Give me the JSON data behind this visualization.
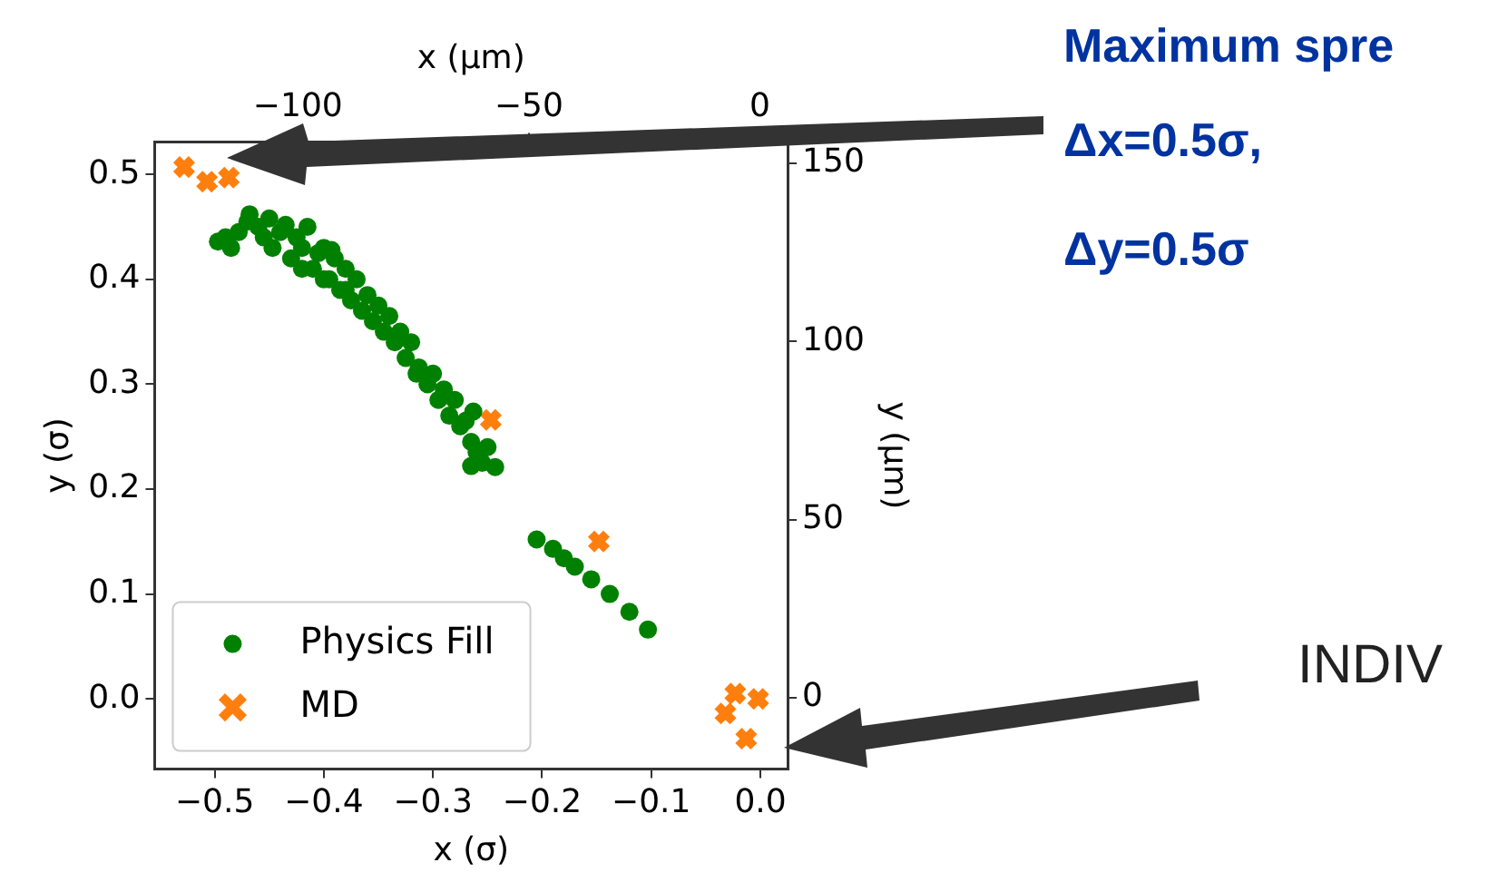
{
  "chart_data": {
    "type": "scatter",
    "xlabel": "x (σ)",
    "ylabel": "y (σ)",
    "x2label": "x (μm)",
    "y2label": "y (μm)",
    "xlim": [
      -0.555,
      0.025
    ],
    "xticks": [
      {
        "value": -0.5,
        "label": "−0.5"
      },
      {
        "value": -0.4,
        "label": "−0.4"
      },
      {
        "value": -0.3,
        "label": "−0.3"
      },
      {
        "value": -0.2,
        "label": "−0.2"
      },
      {
        "value": -0.1,
        "label": "−0.1"
      },
      {
        "value": 0,
        "label": "0.0"
      }
    ],
    "ylim": [
      -0.067,
      0.531
    ],
    "yticks": [
      {
        "value": 0,
        "label": "0.0"
      },
      {
        "value": 0.1,
        "label": "0.1"
      },
      {
        "value": 0.2,
        "label": "0.2"
      },
      {
        "value": 0.3,
        "label": "0.3"
      },
      {
        "value": 0.4,
        "label": "0.4"
      },
      {
        "value": 0.5,
        "label": "0.5"
      }
    ],
    "x2lim": [
      -131,
      6
    ],
    "x2ticks": [
      {
        "value": -100,
        "label": "−100"
      },
      {
        "value": -50,
        "label": "−50"
      },
      0
    ],
    "y2lim": [
      -20,
      156
    ],
    "y2ticks": [
      0,
      50,
      100,
      150
    ],
    "grid": false,
    "legend": "bottom left",
    "series": [
      {
        "name": "Physics Fill",
        "color": "#008000",
        "marker": "circle",
        "x": [
          -0.497,
          -0.49,
          -0.485,
          -0.478,
          -0.47,
          -0.468,
          -0.46,
          -0.455,
          -0.45,
          -0.447,
          -0.44,
          -0.435,
          -0.43,
          -0.425,
          -0.42,
          -0.415,
          -0.41,
          -0.405,
          -0.4,
          -0.395,
          -0.39,
          -0.393,
          -0.385,
          -0.38,
          -0.375,
          -0.37,
          -0.365,
          -0.36,
          -0.355,
          -0.35,
          -0.345,
          -0.34,
          -0.335,
          -0.33,
          -0.325,
          -0.32,
          -0.315,
          -0.313,
          -0.305,
          -0.3,
          -0.295,
          -0.29,
          -0.285,
          -0.28,
          -0.275,
          -0.27,
          -0.265,
          -0.263,
          -0.26,
          -0.265,
          -0.255,
          -0.243,
          -0.25,
          -0.42,
          -0.4,
          -0.38,
          -0.205,
          -0.19,
          -0.18,
          -0.17,
          -0.155,
          -0.138,
          -0.12,
          -0.103
        ],
        "values": [
          0.436,
          0.44,
          0.43,
          0.445,
          0.455,
          0.462,
          0.45,
          0.44,
          0.458,
          0.43,
          0.445,
          0.452,
          0.42,
          0.44,
          0.43,
          0.45,
          0.41,
          0.425,
          0.43,
          0.4,
          0.42,
          0.428,
          0.39,
          0.41,
          0.38,
          0.4,
          0.37,
          0.385,
          0.36,
          0.375,
          0.35,
          0.365,
          0.34,
          0.35,
          0.325,
          0.34,
          0.31,
          0.316,
          0.3,
          0.31,
          0.285,
          0.295,
          0.27,
          0.285,
          0.26,
          0.265,
          0.245,
          0.274,
          0.235,
          0.222,
          0.225,
          0.221,
          0.24,
          0.41,
          0.4,
          0.39,
          0.152,
          0.143,
          0.134,
          0.126,
          0.114,
          0.1,
          0.083,
          0.066
        ]
      },
      {
        "name": "MD",
        "color": "#ff7f0e",
        "marker": "cross",
        "x": [
          -0.528,
          -0.507,
          -0.495,
          -0.487,
          -0.247,
          -0.148,
          -0.023,
          -0.002,
          -0.032,
          -0.013
        ],
        "values": [
          0.507,
          0.493,
          null,
          0.497,
          0.266,
          0.15,
          0.005,
          0,
          -0.014,
          -0.038
        ]
      }
    ],
    "annotations": [
      "Maximum spre",
      "Δx=0.5σ,",
      "Δy=0.5σ",
      "INDIV"
    ]
  }
}
